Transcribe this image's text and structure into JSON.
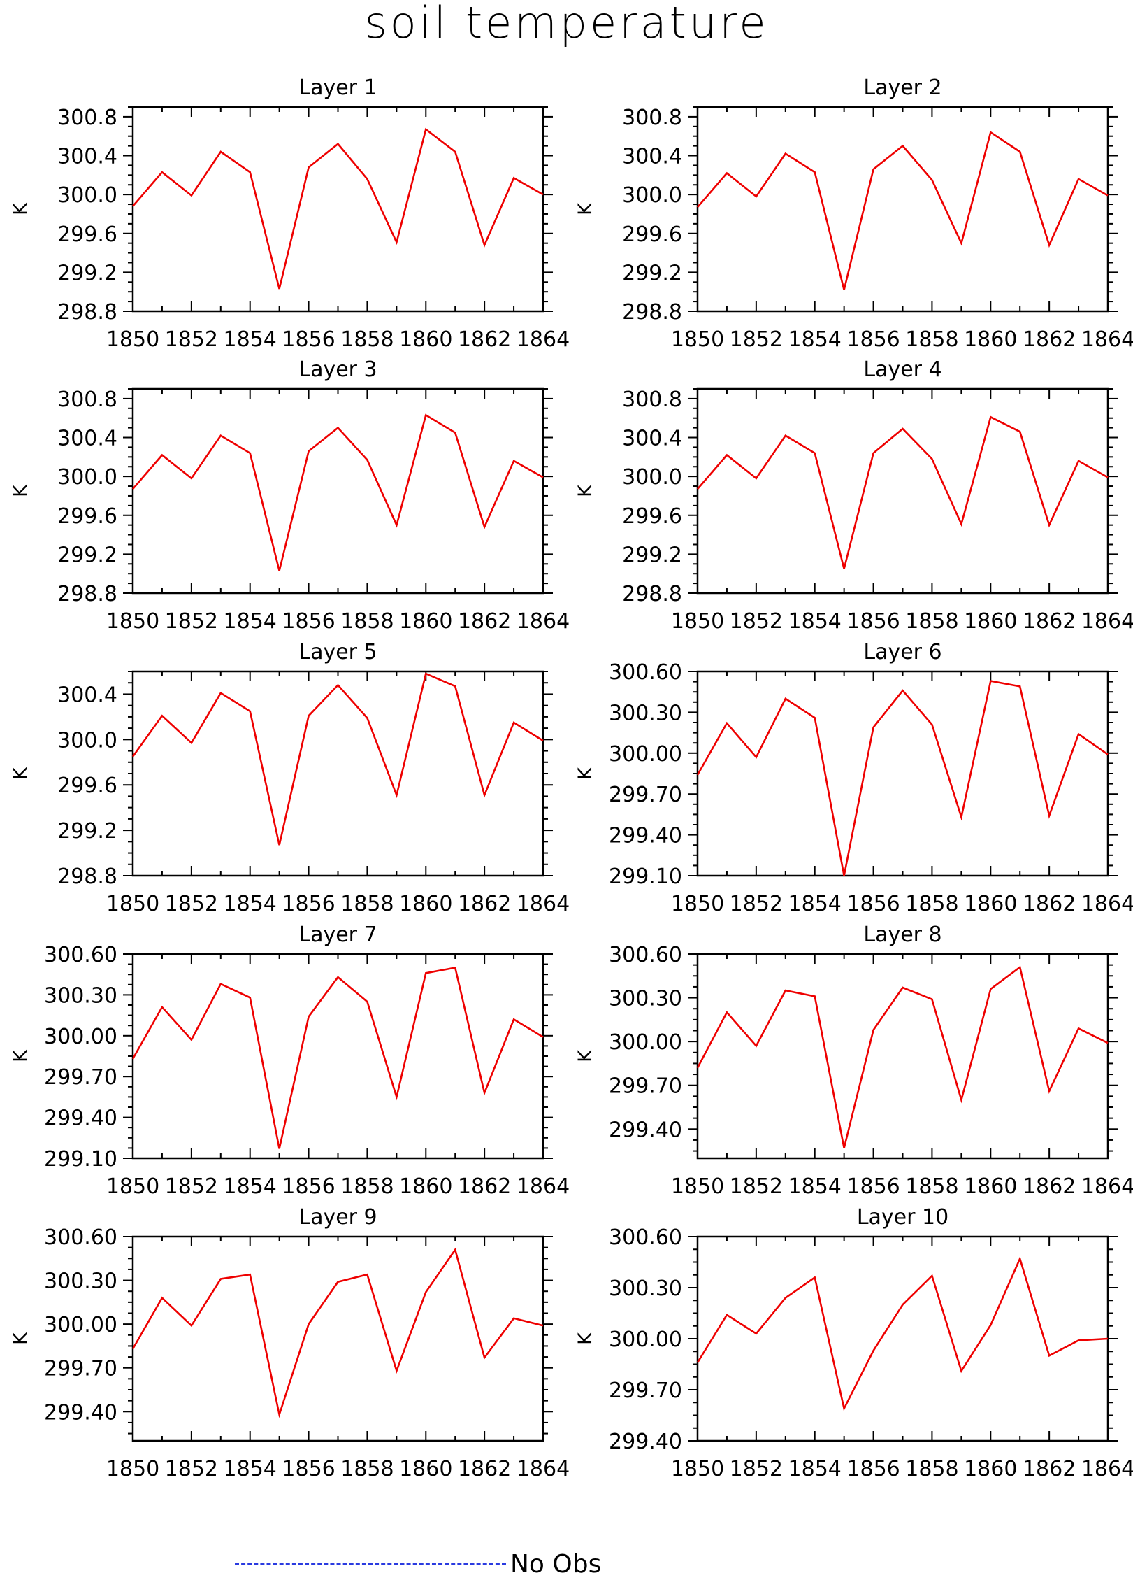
{
  "title": "soil temperature",
  "legend": {
    "label": "No Obs",
    "color": "#2a3be0"
  },
  "series_color": "#ee0000",
  "chart_data": [
    {
      "type": "line",
      "title": "Layer 1",
      "ylabel": "K",
      "x": [
        1850,
        1851,
        1852,
        1853,
        1854,
        1855,
        1856,
        1857,
        1858,
        1859,
        1860,
        1861,
        1862,
        1863,
        1864
      ],
      "values": [
        299.88,
        300.23,
        299.99,
        300.44,
        300.23,
        299.03,
        300.28,
        300.52,
        300.16,
        299.51,
        300.67,
        300.44,
        299.48,
        300.17,
        300.0
      ],
      "xticks": [
        "1850",
        "1852",
        "1854",
        "1856",
        "1858",
        "1860",
        "1862",
        "1864"
      ],
      "yticks": [
        "298.8",
        "299.2",
        "299.6",
        "300.0",
        "300.4",
        "300.8"
      ],
      "ylim": [
        298.8,
        300.9
      ]
    },
    {
      "type": "line",
      "title": "Layer 2",
      "ylabel": "K",
      "x": [
        1850,
        1851,
        1852,
        1853,
        1854,
        1855,
        1856,
        1857,
        1858,
        1859,
        1860,
        1861,
        1862,
        1863,
        1864
      ],
      "values": [
        299.87,
        300.22,
        299.98,
        300.42,
        300.23,
        299.02,
        300.26,
        300.5,
        300.15,
        299.5,
        300.64,
        300.44,
        299.48,
        300.16,
        299.99
      ],
      "xticks": [
        "1850",
        "1852",
        "1854",
        "1856",
        "1858",
        "1860",
        "1862",
        "1864"
      ],
      "yticks": [
        "298.8",
        "299.2",
        "299.6",
        "300.0",
        "300.4",
        "300.8"
      ],
      "ylim": [
        298.8,
        300.9
      ]
    },
    {
      "type": "line",
      "title": "Layer 3",
      "ylabel": "K",
      "x": [
        1850,
        1851,
        1852,
        1853,
        1854,
        1855,
        1856,
        1857,
        1858,
        1859,
        1860,
        1861,
        1862,
        1863,
        1864
      ],
      "values": [
        299.87,
        300.22,
        299.98,
        300.42,
        300.24,
        299.03,
        300.26,
        300.5,
        300.17,
        299.5,
        300.63,
        300.45,
        299.48,
        300.16,
        299.99
      ],
      "xticks": [
        "1850",
        "1852",
        "1854",
        "1856",
        "1858",
        "1860",
        "1862",
        "1864"
      ],
      "yticks": [
        "298.8",
        "299.2",
        "299.6",
        "300.0",
        "300.4",
        "300.8"
      ],
      "ylim": [
        298.8,
        300.9
      ]
    },
    {
      "type": "line",
      "title": "Layer 4",
      "ylabel": "K",
      "x": [
        1850,
        1851,
        1852,
        1853,
        1854,
        1855,
        1856,
        1857,
        1858,
        1859,
        1860,
        1861,
        1862,
        1863,
        1864
      ],
      "values": [
        299.87,
        300.22,
        299.98,
        300.42,
        300.24,
        299.05,
        300.24,
        300.49,
        300.18,
        299.51,
        300.61,
        300.46,
        299.5,
        300.16,
        299.99
      ],
      "xticks": [
        "1850",
        "1852",
        "1854",
        "1856",
        "1858",
        "1860",
        "1862",
        "1864"
      ],
      "yticks": [
        "298.8",
        "299.2",
        "299.6",
        "300.0",
        "300.4",
        "300.8"
      ],
      "ylim": [
        298.8,
        300.9
      ]
    },
    {
      "type": "line",
      "title": "Layer 5",
      "ylabel": "K",
      "x": [
        1850,
        1851,
        1852,
        1853,
        1854,
        1855,
        1856,
        1857,
        1858,
        1859,
        1860,
        1861,
        1862,
        1863,
        1864
      ],
      "values": [
        299.85,
        300.21,
        299.97,
        300.41,
        300.25,
        299.07,
        300.21,
        300.48,
        300.19,
        299.51,
        300.58,
        300.47,
        299.51,
        300.15,
        299.99
      ],
      "xticks": [
        "1850",
        "1852",
        "1854",
        "1856",
        "1858",
        "1860",
        "1862",
        "1864"
      ],
      "yticks": [
        "298.8",
        "299.2",
        "299.6",
        "300.0",
        "300.4"
      ],
      "ylim": [
        298.8,
        300.6
      ]
    },
    {
      "type": "line",
      "title": "Layer 6",
      "ylabel": "K",
      "x": [
        1850,
        1851,
        1852,
        1853,
        1854,
        1855,
        1856,
        1857,
        1858,
        1859,
        1860,
        1861,
        1862,
        1863,
        1864
      ],
      "values": [
        299.84,
        300.22,
        299.97,
        300.4,
        300.26,
        299.1,
        300.19,
        300.46,
        300.21,
        299.53,
        300.53,
        300.49,
        299.54,
        300.14,
        299.99
      ],
      "xticks": [
        "1850",
        "1852",
        "1854",
        "1856",
        "1858",
        "1860",
        "1862",
        "1864"
      ],
      "yticks": [
        "299.10",
        "299.40",
        "299.70",
        "300.00",
        "300.30",
        "300.60"
      ],
      "ylim": [
        299.1,
        300.6
      ]
    },
    {
      "type": "line",
      "title": "Layer 7",
      "ylabel": "K",
      "x": [
        1850,
        1851,
        1852,
        1853,
        1854,
        1855,
        1856,
        1857,
        1858,
        1859,
        1860,
        1861,
        1862,
        1863,
        1864
      ],
      "values": [
        299.83,
        300.21,
        299.97,
        300.38,
        300.28,
        299.17,
        300.14,
        300.43,
        300.25,
        299.55,
        300.46,
        300.5,
        299.58,
        300.12,
        299.99
      ],
      "xticks": [
        "1850",
        "1852",
        "1854",
        "1856",
        "1858",
        "1860",
        "1862",
        "1864"
      ],
      "yticks": [
        "299.10",
        "299.40",
        "299.70",
        "300.00",
        "300.30",
        "300.60"
      ],
      "ylim": [
        299.1,
        300.6
      ]
    },
    {
      "type": "line",
      "title": "Layer 8",
      "ylabel": "K",
      "x": [
        1850,
        1851,
        1852,
        1853,
        1854,
        1855,
        1856,
        1857,
        1858,
        1859,
        1860,
        1861,
        1862,
        1863,
        1864
      ],
      "values": [
        299.82,
        300.2,
        299.97,
        300.35,
        300.31,
        299.27,
        300.08,
        300.37,
        300.29,
        299.6,
        300.36,
        300.51,
        299.66,
        300.09,
        299.99
      ],
      "xticks": [
        "1850",
        "1852",
        "1854",
        "1856",
        "1858",
        "1860",
        "1862",
        "1864"
      ],
      "yticks": [
        "299.40",
        "299.70",
        "300.00",
        "300.30",
        "300.60"
      ],
      "ylim": [
        299.2,
        300.6
      ]
    },
    {
      "type": "line",
      "title": "Layer 9",
      "ylabel": "K",
      "x": [
        1850,
        1851,
        1852,
        1853,
        1854,
        1855,
        1856,
        1857,
        1858,
        1859,
        1860,
        1861,
        1862,
        1863,
        1864
      ],
      "values": [
        299.83,
        300.18,
        299.99,
        300.31,
        300.34,
        299.38,
        300.0,
        300.29,
        300.34,
        299.68,
        300.22,
        300.51,
        299.77,
        300.04,
        299.99
      ],
      "xticks": [
        "1850",
        "1852",
        "1854",
        "1856",
        "1858",
        "1860",
        "1862",
        "1864"
      ],
      "yticks": [
        "299.40",
        "299.70",
        "300.00",
        "300.30",
        "300.60"
      ],
      "ylim": [
        299.2,
        300.6
      ]
    },
    {
      "type": "line",
      "title": "Layer 10",
      "ylabel": "K",
      "x": [
        1850,
        1851,
        1852,
        1853,
        1854,
        1855,
        1856,
        1857,
        1858,
        1859,
        1860,
        1861,
        1862,
        1863,
        1864
      ],
      "values": [
        299.86,
        300.14,
        300.03,
        300.24,
        300.36,
        299.59,
        299.93,
        300.2,
        300.37,
        299.81,
        300.08,
        300.47,
        299.9,
        299.99,
        300.0
      ],
      "xticks": [
        "1850",
        "1852",
        "1854",
        "1856",
        "1858",
        "1860",
        "1862",
        "1864"
      ],
      "yticks": [
        "299.40",
        "299.70",
        "300.00",
        "300.30",
        "300.60"
      ],
      "ylim": [
        299.4,
        300.6
      ]
    }
  ]
}
